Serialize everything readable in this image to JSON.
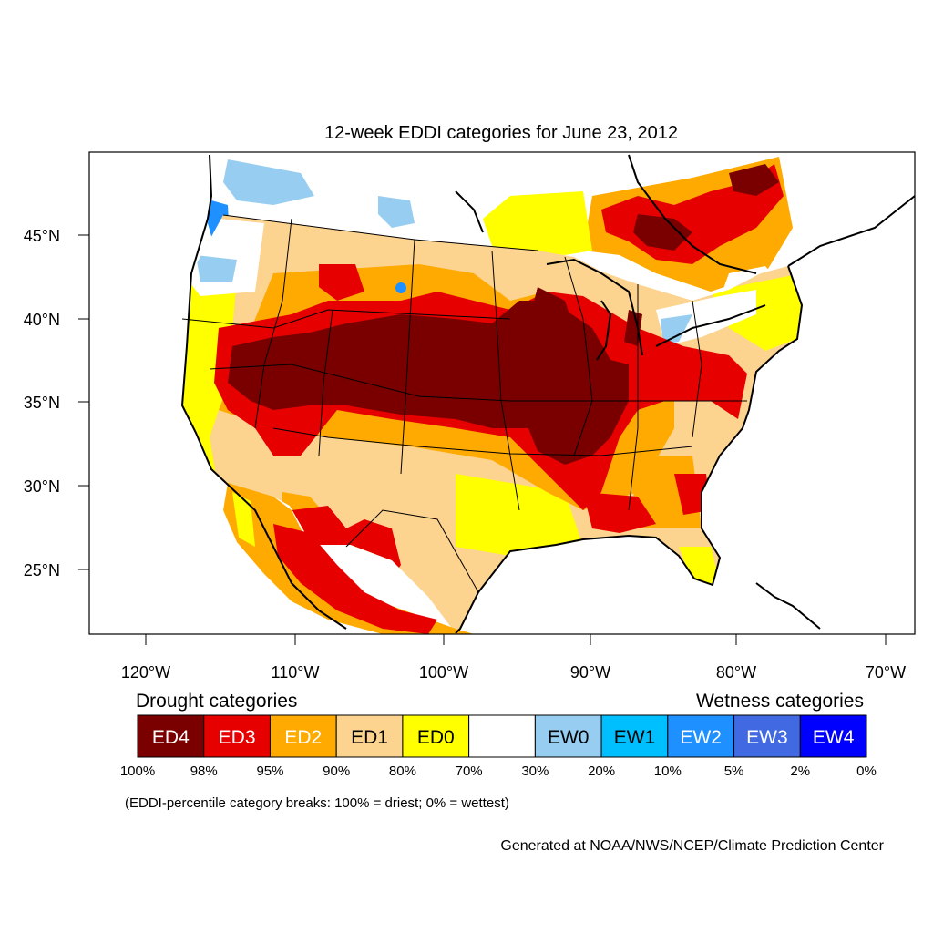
{
  "title": "12-week EDDI categories for June 23, 2012",
  "lat_labels": [
    "45°N",
    "40°N",
    "35°N",
    "30°N",
    "25°N"
  ],
  "lon_labels": [
    "120°W",
    "110°W",
    "100°W",
    "90°W",
    "80°W",
    "70°W"
  ],
  "legend": {
    "drought_heading": "Drought categories",
    "wetness_heading": "Wetness categories",
    "categories": [
      {
        "label": "ED4",
        "color": "#7a0000",
        "text_color": "#ffffff"
      },
      {
        "label": "ED3",
        "color": "#e60000",
        "text_color": "#ffffff"
      },
      {
        "label": "ED2",
        "color": "#ffaa00",
        "text_color": "#ffffff"
      },
      {
        "label": "ED1",
        "color": "#fcd38f",
        "text_color": "#000000"
      },
      {
        "label": "ED0",
        "color": "#ffff00",
        "text_color": "#000000"
      },
      {
        "label": "",
        "color": "#ffffff",
        "text_color": "#000000"
      },
      {
        "label": "EW0",
        "color": "#97cdf0",
        "text_color": "#000000"
      },
      {
        "label": "EW1",
        "color": "#00bfff",
        "text_color": "#000000"
      },
      {
        "label": "EW2",
        "color": "#1e90ff",
        "text_color": "#ffffff"
      },
      {
        "label": "EW3",
        "color": "#4169e1",
        "text_color": "#ffffff"
      },
      {
        "label": "EW4",
        "color": "#0000ff",
        "text_color": "#ffffff"
      }
    ],
    "breaks": [
      "100%",
      "98%",
      "95%",
      "90%",
      "80%",
      "70%",
      "30%",
      "20%",
      "10%",
      "5%",
      "2%",
      "0%"
    ]
  },
  "note": "(EDDI-percentile category breaks: 100% = driest; 0% = wettest)",
  "credit": "Generated at NOAA/NWS/NCEP/Climate Prediction Center"
}
